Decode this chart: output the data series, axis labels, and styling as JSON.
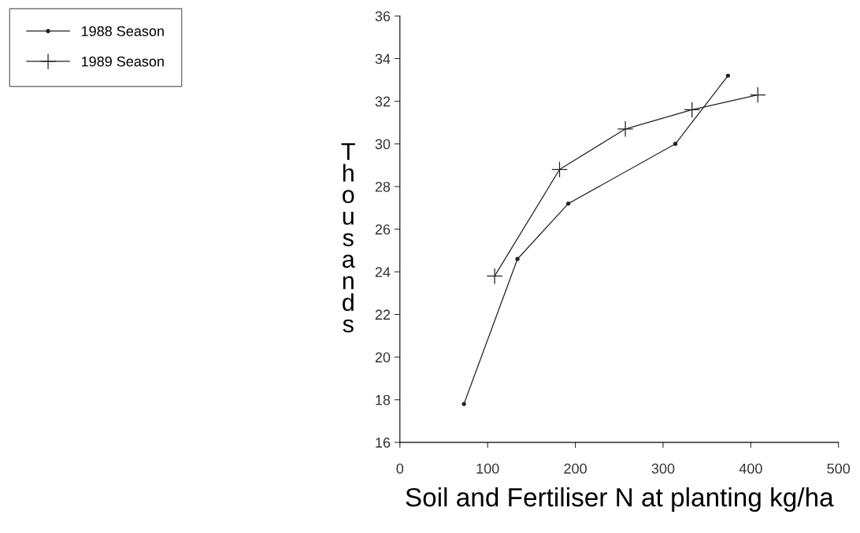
{
  "chart_data": {
    "type": "line",
    "xlabel": "Soil and Fertiliser N at planting kg/ha",
    "ylabel": "Thousands",
    "series": [
      {
        "name": "1988 Season",
        "color": "#222222",
        "marker": "circle",
        "x": [
          73,
          134,
          192,
          314,
          374
        ],
        "values": [
          17.8,
          24.6,
          27.2,
          30.0,
          33.2
        ]
      },
      {
        "name": "1989 Season",
        "color": "#222222",
        "marker": "cross",
        "x": [
          108,
          182,
          257,
          333,
          408
        ],
        "values": [
          23.8,
          28.8,
          30.7,
          31.6,
          32.3
        ]
      }
    ],
    "xlim": [
      0,
      500
    ],
    "xticks": [
      0,
      100,
      200,
      300,
      400,
      500
    ],
    "ylim": [
      16,
      36
    ],
    "yticks": [
      16,
      18,
      20,
      22,
      24,
      26,
      28,
      30,
      32,
      34,
      36
    ],
    "grid": false,
    "legend": "top left",
    "line_style": "solid"
  }
}
